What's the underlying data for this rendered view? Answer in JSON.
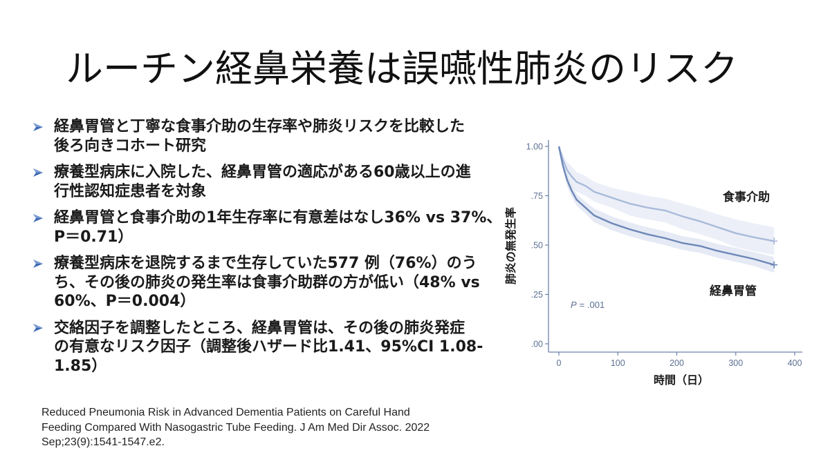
{
  "slide": {
    "title": "ルーチン経鼻栄養は誤嚥性肺炎のリスク",
    "bullet_icon": "arrow-bullet-icon",
    "bullets": [
      {
        "lines": [
          "経鼻胃管と丁寧な食事介助の生存率や肺炎リスクを比較した",
          "後ろ向きコホート研究"
        ]
      },
      {
        "lines": [
          "療養型病床に入院した、経鼻胃管の適応がある60歳以上の進",
          "行性認知症患者を対象"
        ]
      },
      {
        "lines": [
          "経鼻胃管と食事介助の1年生存率に有意差はなし36% vs 37%、",
          "P＝0.71）"
        ]
      },
      {
        "lines": [
          "療養型病床を退院するまで生存していた577 例（76%）のう",
          "ち、その後の肺炎の発生率は食事介助群の方が低い（48% vs",
          "60%、P＝0.004）"
        ]
      },
      {
        "lines": [
          "交絡因子を調整したところ、経鼻胃管は、その後の肺炎発症",
          "の有意なリスク因子（調整後ハザード比1.41、95%CI 1.08-",
          "1.85）"
        ]
      }
    ],
    "citation": {
      "lines": [
        "Reduced Pneumonia Risk in Advanced Dementia Patients on Careful Hand",
        "Feeding Compared With Nasogastric Tube Feeding. J Am Med Dir Assoc. 2022",
        "Sep;23(9):1541-1547.e2."
      ]
    }
  },
  "colors": {
    "title_text": "#111111",
    "body_text": "#1a1a1a",
    "bullet_arrow": "#3d6ab3",
    "bullet_arrow_highlight": "#7a9bd3",
    "chart_axis": "#6a80a8",
    "chart_tick_label": "#5b6f93"
  },
  "chart_data": {
    "type": "line",
    "xlabel": "時間（日）",
    "ylabel": "肺炎の無発生率",
    "xlim": [
      0,
      400
    ],
    "ylim": [
      0,
      1
    ],
    "x_ticks": [
      0,
      100,
      200,
      300,
      400
    ],
    "y_ticks": [
      1.0,
      0.75,
      0.5,
      0.25,
      0.0
    ],
    "y_tick_labels": [
      "1.00",
      ".75",
      ".50",
      ".25",
      ".00"
    ],
    "grid": false,
    "x": [
      0,
      7,
      14,
      21,
      30,
      45,
      60,
      90,
      120,
      150,
      180,
      210,
      240,
      270,
      300,
      330,
      365
    ],
    "series": [
      {
        "name": "食事介助",
        "color": "#a9badb",
        "band_color": "#dfe5f2",
        "values": [
          1.0,
          0.93,
          0.88,
          0.85,
          0.82,
          0.8,
          0.77,
          0.74,
          0.71,
          0.69,
          0.675,
          0.645,
          0.62,
          0.59,
          0.56,
          0.54,
          0.52
        ],
        "ci_upper": [
          1.0,
          0.96,
          0.92,
          0.9,
          0.87,
          0.85,
          0.82,
          0.79,
          0.77,
          0.75,
          0.735,
          0.71,
          0.685,
          0.655,
          0.63,
          0.61,
          0.59
        ],
        "ci_lower": [
          1.0,
          0.9,
          0.84,
          0.8,
          0.77,
          0.75,
          0.72,
          0.69,
          0.65,
          0.63,
          0.615,
          0.58,
          0.555,
          0.525,
          0.49,
          0.47,
          0.45
        ]
      },
      {
        "name": "経鼻胃管",
        "color": "#6d87b7",
        "band_color": "#d3dcee",
        "values": [
          1.0,
          0.9,
          0.83,
          0.78,
          0.73,
          0.69,
          0.65,
          0.61,
          0.58,
          0.555,
          0.535,
          0.51,
          0.495,
          0.47,
          0.45,
          0.43,
          0.4
        ],
        "ci_upper": [
          1.0,
          0.92,
          0.86,
          0.81,
          0.76,
          0.72,
          0.685,
          0.645,
          0.615,
          0.59,
          0.57,
          0.545,
          0.53,
          0.505,
          0.485,
          0.465,
          0.44
        ],
        "ci_lower": [
          1.0,
          0.88,
          0.8,
          0.75,
          0.7,
          0.66,
          0.615,
          0.575,
          0.545,
          0.52,
          0.5,
          0.475,
          0.46,
          0.435,
          0.415,
          0.395,
          0.36
        ]
      }
    ],
    "annotation": {
      "symbol": "P",
      "value": "= .001"
    }
  }
}
